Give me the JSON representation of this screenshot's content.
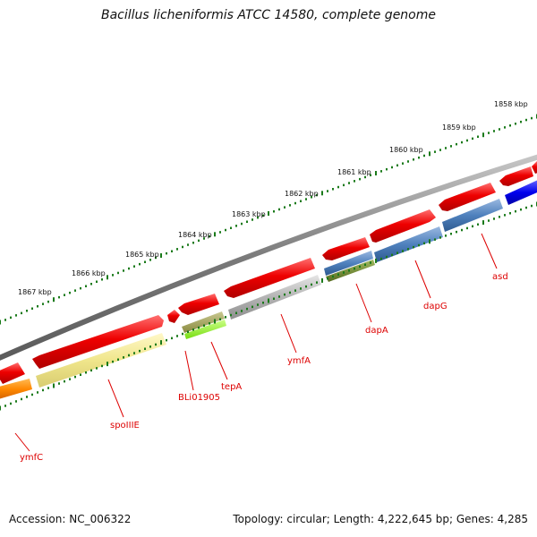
{
  "title": "Bacillus licheniformis ATCC 14580, complete genome",
  "accession": "Accession: NC_006322",
  "summary": "Topology: circular; Length: 4,222,645 bp; Genes: 4,285",
  "ruler": {
    "tick_color": "#1a7a1a",
    "labels": [
      {
        "text": "1858 kbp",
        "kbp": 1858
      },
      {
        "text": "1859 kbp",
        "kbp": 1859
      },
      {
        "text": "1860 kbp",
        "kbp": 1860
      },
      {
        "text": "1861 kbp",
        "kbp": 1861
      },
      {
        "text": "1862 kbp",
        "kbp": 1862
      },
      {
        "text": "1863 kbp",
        "kbp": 1863
      },
      {
        "text": "1864 kbp",
        "kbp": 1864
      },
      {
        "text": "1865 kbp",
        "kbp": 1865
      },
      {
        "text": "1866 kbp",
        "kbp": 1866
      },
      {
        "text": "1867 kbp",
        "kbp": 1867
      }
    ]
  },
  "backbone": {
    "color": "#808080"
  },
  "cds_track": {
    "color": "#ee0000",
    "features": [
      {
        "name": "cds-1",
        "strand": "forward"
      },
      {
        "name": "cds-2",
        "strand": "reverse"
      },
      {
        "name": "cds-3",
        "strand": "reverse"
      },
      {
        "name": "cds-4",
        "strand": "reverse"
      },
      {
        "name": "cds-5",
        "strand": "reverse"
      },
      {
        "name": "cds-6",
        "strand": "reverse"
      },
      {
        "name": "cds-7",
        "strand": "forward"
      },
      {
        "name": "cds-8",
        "strand": "reverse"
      },
      {
        "name": "cds-9",
        "strand": "forward"
      },
      {
        "name": "cds-10",
        "strand": "reverse"
      }
    ]
  },
  "gene_track": {
    "features": [
      {
        "name": "gene-ymfC",
        "color": "#ff8800",
        "lower_color": null
      },
      {
        "name": "gene-spoIIIE",
        "color": "#f0e68c",
        "lower_color": null
      },
      {
        "name": "gene-tepA",
        "color": "#9a9a50",
        "lower_color": "#99ff33"
      },
      {
        "name": "gene-ymfA",
        "color": "#b4b4b4",
        "lower_color": null
      },
      {
        "name": "gene-dapA",
        "color": "#4f81bd",
        "lower_color": "#6b8e23"
      },
      {
        "name": "gene-dapG",
        "color": "#4f81bd",
        "lower_color": null
      },
      {
        "name": "gene-asd",
        "color": "#4f81bd",
        "lower_color": null
      },
      {
        "name": "gene-blue",
        "color": "#0000ee",
        "lower_color": null
      }
    ]
  },
  "gene_labels": [
    {
      "text": "ymfC",
      "key": "ymfC"
    },
    {
      "text": "spoIIIE",
      "key": "spoIIIE"
    },
    {
      "text": "BLi01905",
      "key": "BLi01905"
    },
    {
      "text": "tepA",
      "key": "tepA"
    },
    {
      "text": "ymfA",
      "key": "ymfA"
    },
    {
      "text": "dapA",
      "key": "dapA"
    },
    {
      "text": "dapG",
      "key": "dapG"
    },
    {
      "text": "asd",
      "key": "asd"
    }
  ],
  "label_color": "#dd0000"
}
